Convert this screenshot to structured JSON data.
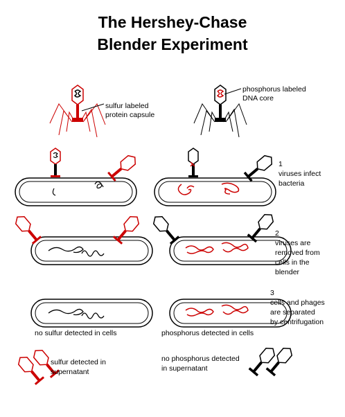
{
  "title_line1": "The Hershey-Chase",
  "title_line2": "Blender Experiment",
  "labels": {
    "sulfur_labeled_1": "sulfur labeled",
    "sulfur_labeled_2": "protein capsule",
    "phosphorus_labeled_1": "phosphorus labeled",
    "phosphorus_labeled_2": "DNA core",
    "step1_num": "1",
    "step1_text_1": "viruses infect",
    "step1_text_2": "bacteria",
    "step2_num": "2",
    "step2_text_1": "viruses are",
    "step2_text_2": "removed from",
    "step2_text_3": "cells in the",
    "step2_text_4": "blender",
    "step3_num": "3",
    "step3_text_1": "cells and phages",
    "step3_text_2": "are separated",
    "step3_text_3": "by centrifugation",
    "no_sulfur_cells": "no sulfur detected in cells",
    "phosphorus_cells": "phosphorus detected in cells",
    "sulfur_supernatant_1": "sulfur detected in",
    "sulfur_supernatant_2": "supernatant",
    "no_phosphorus_1": "no phosphorus detected",
    "no_phosphorus_2": "in supernatant"
  },
  "colors": {
    "label_red": "#cc0000",
    "ink": "#000000"
  }
}
